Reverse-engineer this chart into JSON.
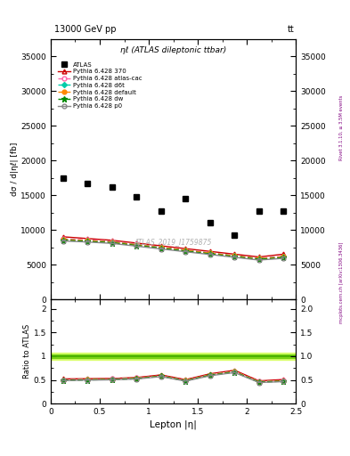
{
  "title_top": "13000 GeV pp",
  "title_top_right": "tt",
  "plot_title": "ηℓ (ATLAS dileptonic ttbar)",
  "watermark": "ATLAS_2019_I1759875",
  "ylabel_main": "dσ / d|ηℓ| [fb]",
  "ylabel_ratio": "Ratio to ATLAS",
  "xlabel": "Lepton |η|",
  "right_label_top": "Rivet 3.1.10, ≥ 3.5M events",
  "right_label_bottom": "mcplots.cern.ch [arXiv:1306.3436]",
  "atlas_x": [
    0.125,
    0.375,
    0.625,
    0.875,
    1.125,
    1.375,
    1.625,
    1.875,
    2.125,
    2.375
  ],
  "atlas_y": [
    17400,
    16700,
    16100,
    14750,
    12750,
    14500,
    11000,
    9250,
    12750,
    12750
  ],
  "pythia_x": [
    0.125,
    0.375,
    0.625,
    0.875,
    1.125,
    1.375,
    1.625,
    1.875,
    2.125,
    2.375
  ],
  "p370_y": [
    9000,
    8750,
    8500,
    8100,
    7700,
    7300,
    6900,
    6500,
    6100,
    6500
  ],
  "patlas_y": [
    8700,
    8550,
    8350,
    7950,
    7500,
    7100,
    6700,
    6300,
    5900,
    6200
  ],
  "pd6t_y": [
    8600,
    8450,
    8250,
    7850,
    7450,
    7050,
    6650,
    6250,
    5850,
    6100
  ],
  "pdefault_y": [
    8600,
    8450,
    8250,
    7850,
    7450,
    7050,
    6650,
    6250,
    5850,
    6100
  ],
  "pdw_y": [
    8500,
    8350,
    8150,
    7750,
    7350,
    6950,
    6550,
    6150,
    5750,
    6000
  ],
  "pp0_y": [
    8400,
    8250,
    8050,
    7650,
    7250,
    6850,
    6450,
    6050,
    5650,
    5900
  ],
  "ratio_370": [
    0.52,
    0.525,
    0.53,
    0.55,
    0.605,
    0.505,
    0.628,
    0.703,
    0.479,
    0.508
  ],
  "ratio_atlas": [
    0.5,
    0.512,
    0.52,
    0.539,
    0.588,
    0.49,
    0.609,
    0.681,
    0.463,
    0.487
  ],
  "ratio_d6t": [
    0.495,
    0.507,
    0.513,
    0.532,
    0.584,
    0.487,
    0.605,
    0.675,
    0.459,
    0.479
  ],
  "ratio_default": [
    0.495,
    0.507,
    0.513,
    0.532,
    0.584,
    0.487,
    0.605,
    0.675,
    0.459,
    0.479
  ],
  "ratio_dw": [
    0.489,
    0.5,
    0.507,
    0.525,
    0.577,
    0.48,
    0.596,
    0.665,
    0.451,
    0.471
  ],
  "ratio_p0": [
    0.483,
    0.495,
    0.501,
    0.518,
    0.569,
    0.473,
    0.587,
    0.655,
    0.444,
    0.463
  ],
  "ylim_main": [
    0,
    37500
  ],
  "ylim_ratio": [
    0,
    2.2
  ],
  "xlim": [
    0,
    2.5
  ],
  "yticks_main": [
    0,
    5000,
    10000,
    15000,
    20000,
    25000,
    30000,
    35000
  ],
  "yticks_ratio": [
    0,
    0.5,
    1.0,
    1.5,
    2.0
  ],
  "xticks": [
    0,
    0.5,
    1.0,
    1.5,
    2.0,
    2.5
  ],
  "color_370": "#cc0000",
  "color_atlas_cac": "#ff66aa",
  "color_d6t": "#00ccaa",
  "color_default": "#ff8800",
  "color_dw": "#008800",
  "color_p0": "#888888",
  "bg_color": "#ffffff",
  "green_band_lo": 0.93,
  "green_band_hi": 1.07
}
